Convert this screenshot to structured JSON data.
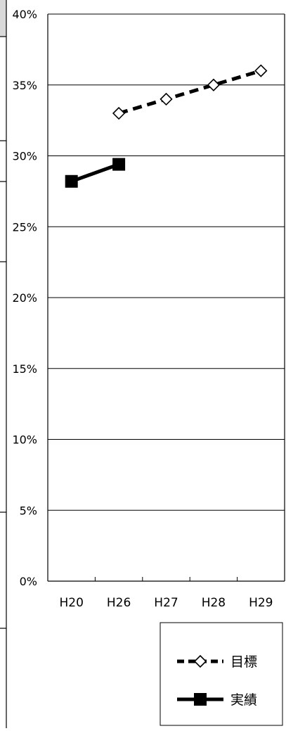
{
  "chart_data": {
    "type": "line",
    "categories": [
      "H20",
      "H26",
      "H27",
      "H28",
      "H29"
    ],
    "ylim": [
      0,
      40
    ],
    "y_ticks": [
      0,
      5,
      10,
      15,
      20,
      25,
      30,
      35,
      40
    ],
    "y_tick_labels": [
      "0%",
      "5%",
      "10%",
      "15%",
      "20%",
      "25%",
      "30%",
      "35%",
      "40%"
    ],
    "grid": true,
    "legend_position": "bottom-right",
    "series": [
      {
        "name": "目標",
        "style": "dashed",
        "marker": "open-diamond",
        "color": "#000000",
        "values": [
          null,
          33,
          34,
          35,
          36
        ]
      },
      {
        "name": "実績",
        "style": "solid",
        "marker": "filled-square",
        "color": "#000000",
        "values": [
          28.2,
          29.4,
          null,
          null,
          null
        ]
      }
    ]
  }
}
